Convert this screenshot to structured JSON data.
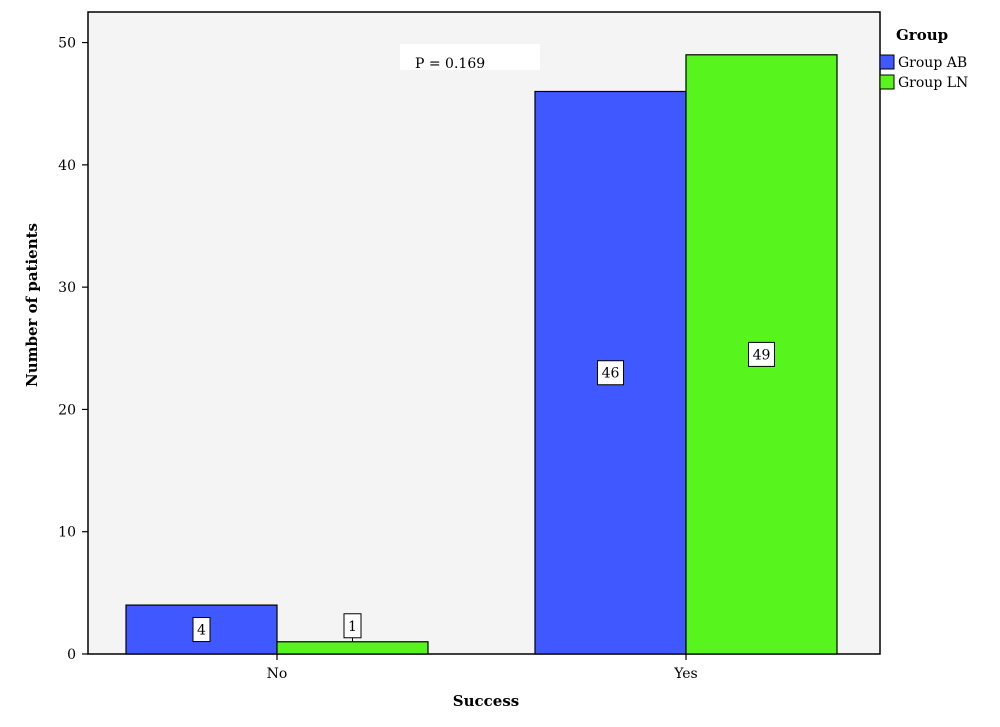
{
  "chart_data": {
    "type": "bar",
    "categories": [
      "No",
      "Yes"
    ],
    "series": [
      {
        "name": "Group AB",
        "values": [
          4,
          46
        ],
        "color": "#3f58ff"
      },
      {
        "name": "Group LN",
        "values": [
          1,
          49
        ],
        "color": "#57f51d"
      }
    ],
    "xlabel": "Success",
    "ylabel": "Number of patients",
    "ylim": [
      0,
      52.5
    ],
    "yticks": [
      0,
      10,
      20,
      30,
      40,
      50
    ],
    "legend": {
      "title": "Group",
      "placement": "top-right-outside"
    },
    "annotation": "P = 0.169",
    "plot_background": "#f4f4f4",
    "grid": false
  }
}
